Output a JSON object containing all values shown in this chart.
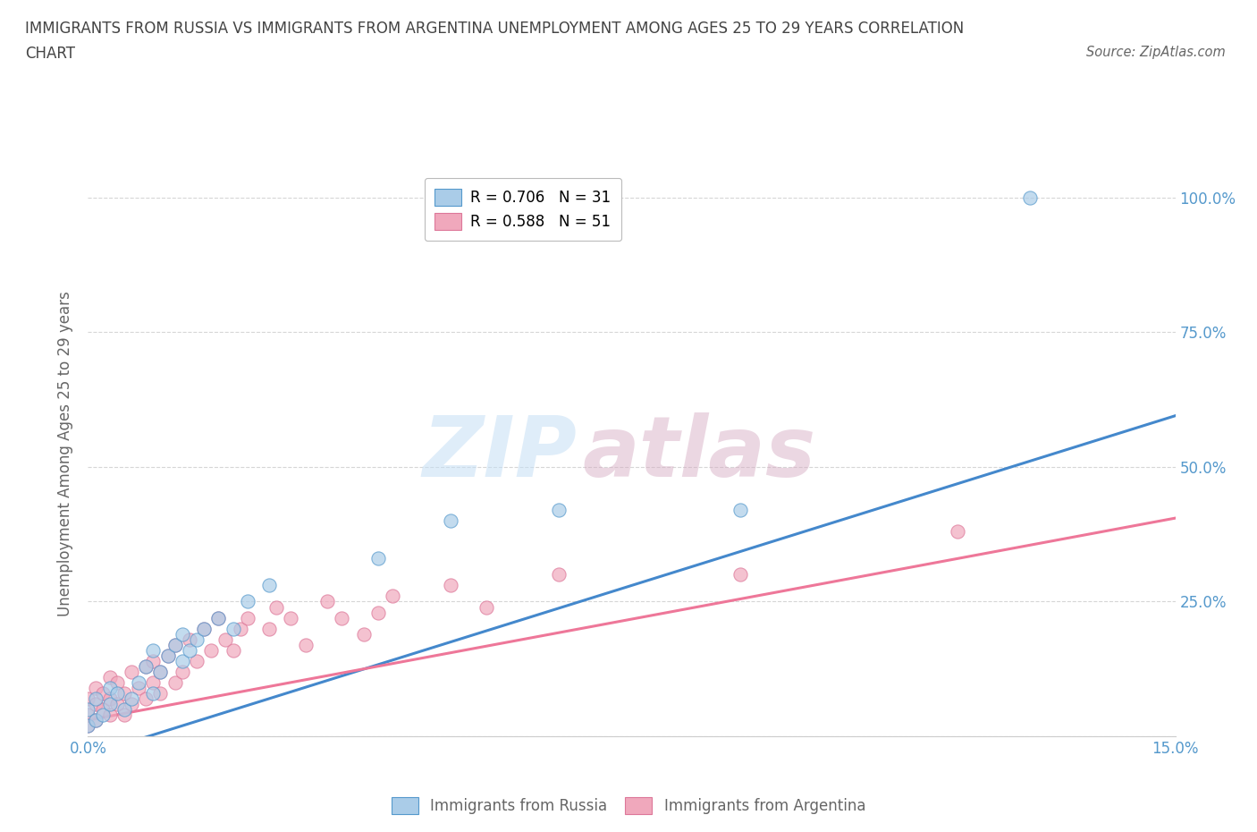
{
  "title_line1": "IMMIGRANTS FROM RUSSIA VS IMMIGRANTS FROM ARGENTINA UNEMPLOYMENT AMONG AGES 25 TO 29 YEARS CORRELATION",
  "title_line2": "CHART",
  "source": "Source: ZipAtlas.com",
  "ylabel": "Unemployment Among Ages 25 to 29 years",
  "xlim": [
    0.0,
    0.15
  ],
  "ylim": [
    0.0,
    1.05
  ],
  "yticks": [
    0.0,
    0.25,
    0.5,
    0.75,
    1.0
  ],
  "ytick_labels": [
    "",
    "25.0%",
    "50.0%",
    "75.0%",
    "100.0%"
  ],
  "xtick_positions": [
    0.0,
    0.03,
    0.06,
    0.09,
    0.12,
    0.15
  ],
  "xtick_labels": [
    "0.0%",
    "",
    "",
    "",
    "",
    "15.0%"
  ],
  "russia_color": "#aacce8",
  "argentina_color": "#f0a8bc",
  "russia_edge_color": "#5599cc",
  "argentina_edge_color": "#dd7799",
  "russia_line_color": "#4488cc",
  "argentina_line_color": "#ee7799",
  "russia_R": 0.706,
  "russia_N": 31,
  "argentina_R": 0.588,
  "argentina_N": 51,
  "russia_line_slope": 4.2,
  "russia_line_intercept": -0.035,
  "argentina_line_slope": 2.5,
  "argentina_line_intercept": 0.03,
  "russia_x": [
    0.0,
    0.0,
    0.001,
    0.001,
    0.002,
    0.003,
    0.003,
    0.004,
    0.005,
    0.006,
    0.007,
    0.008,
    0.009,
    0.009,
    0.01,
    0.011,
    0.012,
    0.013,
    0.013,
    0.014,
    0.015,
    0.016,
    0.018,
    0.02,
    0.022,
    0.025,
    0.04,
    0.05,
    0.065,
    0.09,
    0.13
  ],
  "russia_y": [
    0.02,
    0.05,
    0.03,
    0.07,
    0.04,
    0.06,
    0.09,
    0.08,
    0.05,
    0.07,
    0.1,
    0.13,
    0.08,
    0.16,
    0.12,
    0.15,
    0.17,
    0.19,
    0.14,
    0.16,
    0.18,
    0.2,
    0.22,
    0.2,
    0.25,
    0.28,
    0.33,
    0.4,
    0.42,
    0.42,
    1.0
  ],
  "argentina_x": [
    0.0,
    0.0,
    0.0,
    0.001,
    0.001,
    0.001,
    0.002,
    0.002,
    0.003,
    0.003,
    0.003,
    0.004,
    0.004,
    0.005,
    0.005,
    0.006,
    0.006,
    0.007,
    0.008,
    0.008,
    0.009,
    0.009,
    0.01,
    0.01,
    0.011,
    0.012,
    0.012,
    0.013,
    0.014,
    0.015,
    0.016,
    0.017,
    0.018,
    0.019,
    0.02,
    0.021,
    0.022,
    0.025,
    0.026,
    0.028,
    0.03,
    0.033,
    0.035,
    0.038,
    0.04,
    0.042,
    0.05,
    0.055,
    0.065,
    0.09,
    0.12
  ],
  "argentina_y": [
    0.02,
    0.04,
    0.07,
    0.03,
    0.06,
    0.09,
    0.05,
    0.08,
    0.04,
    0.07,
    0.11,
    0.06,
    0.1,
    0.04,
    0.08,
    0.06,
    0.12,
    0.09,
    0.07,
    0.13,
    0.1,
    0.14,
    0.08,
    0.12,
    0.15,
    0.1,
    0.17,
    0.12,
    0.18,
    0.14,
    0.2,
    0.16,
    0.22,
    0.18,
    0.16,
    0.2,
    0.22,
    0.2,
    0.24,
    0.22,
    0.17,
    0.25,
    0.22,
    0.19,
    0.23,
    0.26,
    0.28,
    0.24,
    0.3,
    0.3,
    0.38
  ],
  "watermark_zip": "ZIP",
  "watermark_atlas": "atlas",
  "background_color": "#ffffff",
  "grid_color": "#cccccc",
  "title_color": "#444444",
  "axis_label_color": "#666666",
  "tick_color": "#5599cc",
  "legend_box_color": "#ffffff"
}
